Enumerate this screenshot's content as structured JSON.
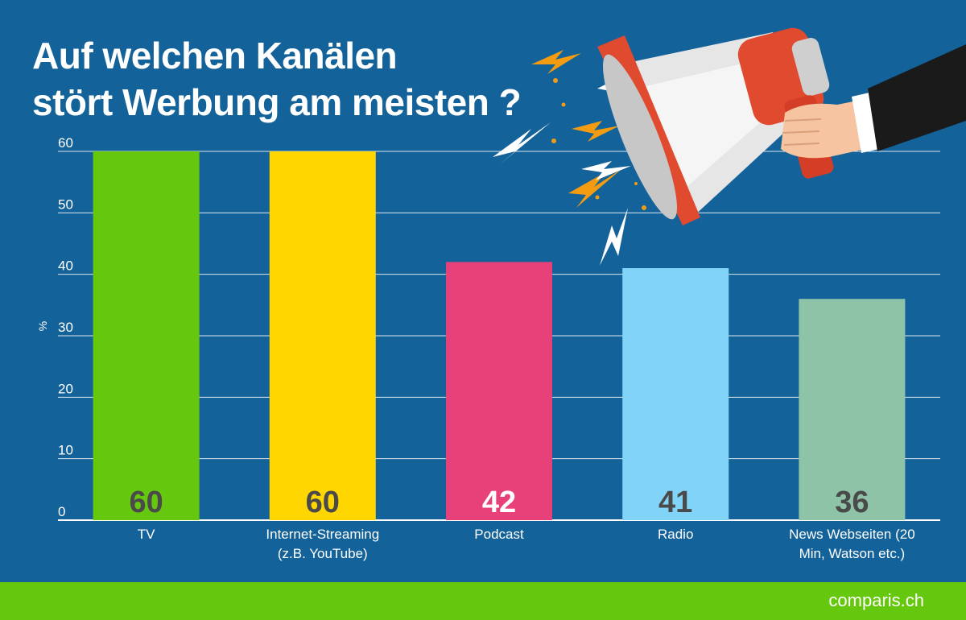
{
  "title": {
    "line1": "Auf welchen Kanälen",
    "line2": "stört Werbung am meisten ?"
  },
  "chart_data": {
    "type": "bar",
    "categories": [
      [
        "TV"
      ],
      [
        "Internet-Streaming",
        "(z.B. YouTube)"
      ],
      [
        "Podcast"
      ],
      [
        "Radio"
      ],
      [
        "News Webseiten (20",
        "Min, Watson etc.)"
      ]
    ],
    "values": [
      60,
      60,
      42,
      41,
      36
    ],
    "data_labels": [
      "60",
      "60",
      "42",
      "41",
      "36"
    ],
    "ylabel": "%",
    "ylim": [
      0,
      60
    ],
    "yticks": [
      0,
      10,
      20,
      30,
      40,
      50,
      60
    ],
    "grid": true,
    "legend": "none",
    "colors": [
      "#66c80e",
      "#ffd600",
      "#e8417a",
      "#81d3f8",
      "#8ec3a8"
    ],
    "label_colors": [
      "#4a4a4a",
      "#4a4a4a",
      "#ffffff",
      "#4a4a4a",
      "#4a4a4a"
    ]
  },
  "colors": {
    "background": "#14629a",
    "footer": "#66c80e",
    "text": "#ffffff",
    "grid": "#ffffff"
  },
  "illustration": "megaphone-in-hand-icon",
  "footer": {
    "logo_text": "comparis.ch"
  }
}
